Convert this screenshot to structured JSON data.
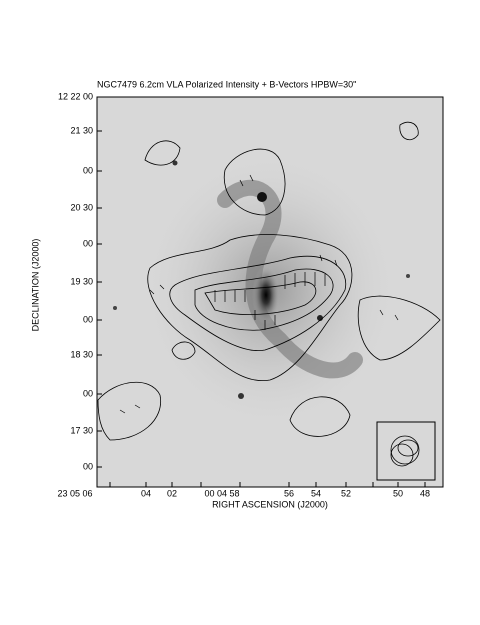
{
  "figure": {
    "title": "NGC7479  6.2cm  VLA  Polarized Intensity + B-Vectors  HPBW=30\"",
    "xlabel": "RIGHT ASCENSION (J2000)",
    "ylabel": "DECLINATION (J2000)",
    "xticks": [
      "23 05 06",
      "04",
      "02",
      "00 04 58",
      "56",
      "54",
      "52",
      "50",
      "48"
    ],
    "yticks": [
      "12 22 00",
      "21 30",
      "00",
      "20 30",
      "00",
      "19 30",
      "00",
      "18 30",
      "00",
      "17 30",
      "00"
    ]
  }
}
